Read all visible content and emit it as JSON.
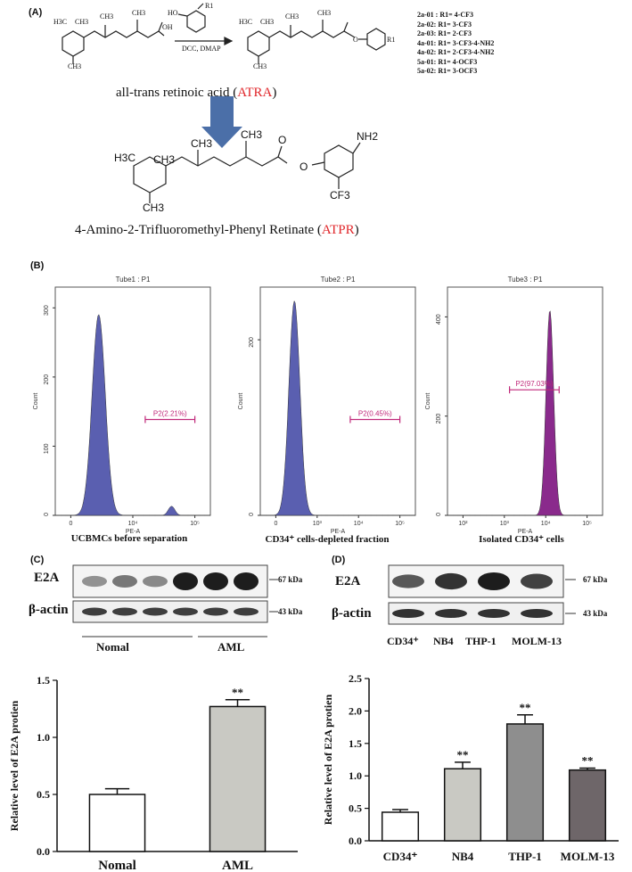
{
  "panel_a": {
    "label": "(A)",
    "reagent_top": "HO",
    "reagent_r": "R1",
    "conditions": "DCC, DMAP",
    "reaction_r": "R1",
    "r_groups": [
      "2a-01 : R1= 4-CF3",
      "2a-02: R1= 3-CF3",
      "2a-03: R1= 2-CF3",
      "4a-01: R1= 3-CF3-4-NH2",
      "4a-02: R1= 2-CF3-4-NH2",
      "5a-01: R1= 4-OCF3",
      "5a-02: R1= 3-OCF3"
    ],
    "atra_caption_pre": "all-trans retinoic acid (",
    "atra_abbr": "ATRA",
    "atra_caption_post": ")",
    "atpr_caption_pre": "4-Amino-2-Trifluoromethyl-Phenyl Retinate (",
    "atpr_abbr": "ATPR",
    "atpr_caption_post": ")",
    "atoms": {
      "h3c": "H3C",
      "ch3": "CH3",
      "oh": "OH",
      "o": "O",
      "nh2": "NH2",
      "cf3": "CF3"
    }
  },
  "panel_b": {
    "label": "(B)",
    "plots": [
      {
        "title": "Tube1 : P1",
        "gate": "P2(2.21%)",
        "xlabel": "PE-A",
        "ylabel": "Count",
        "yticks": [
          "0",
          "100",
          "200",
          "300"
        ],
        "xticks": [
          "0",
          "10⁴",
          "10⁵"
        ],
        "caption": "UCBMCs before separation",
        "color": "#5a5fb0"
      },
      {
        "title": "Tube2 : P1",
        "gate": "P2(0.45%)",
        "xlabel": "PE-A",
        "ylabel": "Count",
        "yticks": [
          "0",
          "200"
        ],
        "xticks": [
          "0",
          "10³",
          "10⁴",
          "10⁵"
        ],
        "caption": "CD34⁺ cells-depleted fraction",
        "color": "#5a5fb0"
      },
      {
        "title": "Tube3 : P1",
        "gate": "P2(97.03%)",
        "xlabel": "PE-A",
        "ylabel": "Count",
        "yticks": [
          "0",
          "200",
          "400"
        ],
        "xticks": [
          "10²",
          "10³",
          "10⁴",
          "10⁵"
        ],
        "caption": "Isolated CD34⁺ cells",
        "color": "#8a2a8c"
      }
    ]
  },
  "panel_c": {
    "label": "(C)",
    "blot_rows": [
      "E2A",
      "β-actin"
    ],
    "sizes": [
      "67 kDa",
      "43 kDa"
    ],
    "groups": [
      "Nomal",
      "AML"
    ],
    "colors": {
      "nomal": "#ffffff",
      "aml": "#c9c9c3"
    },
    "chart_data": {
      "type": "bar",
      "categories": [
        "Nomal",
        "AML"
      ],
      "values": [
        0.5,
        1.27
      ],
      "errors": [
        0.05,
        0.06
      ],
      "significance": [
        "",
        "**"
      ],
      "ylabel": "Relative level of E2A protien",
      "ylim": [
        0,
        1.5
      ],
      "yticks": [
        "0.0",
        "0.5",
        "1.0",
        "1.5"
      ]
    }
  },
  "panel_d": {
    "label": "(D)",
    "blot_rows": [
      "E2A",
      "β-actin"
    ],
    "sizes": [
      "67 kDa",
      "43 kDa"
    ],
    "lanes": [
      "CD34⁺",
      "NB4",
      "THP-1",
      "MOLM-13"
    ],
    "colors": {
      "cd34": "#ffffff",
      "nb4": "#c9c9c3",
      "thp1": "#8e8e8e",
      "molm13": "#6e6669"
    },
    "chart_data": {
      "type": "bar",
      "categories": [
        "CD34⁺",
        "NB4",
        "THP-1",
        "MOLM-13"
      ],
      "values": [
        0.44,
        1.11,
        1.8,
        1.09
      ],
      "errors": [
        0.04,
        0.1,
        0.14,
        0.03
      ],
      "significance": [
        "",
        "**",
        "**",
        "**"
      ],
      "ylabel": "Relative level of E2A protien",
      "ylim": [
        0,
        2.5
      ],
      "yticks": [
        "0.0",
        "0.5",
        "1.0",
        "1.5",
        "2.0",
        "2.5"
      ]
    }
  }
}
